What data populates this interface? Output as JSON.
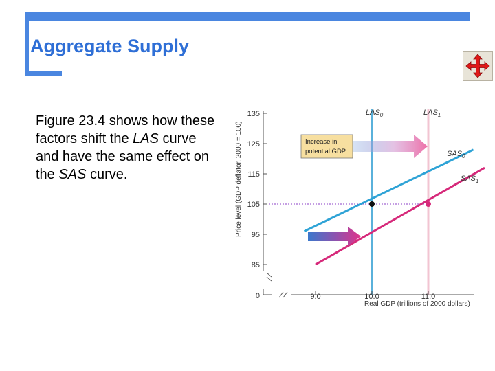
{
  "slide": {
    "title": "Aggregate Supply",
    "body": {
      "p1": "Figure 23.4 shows how these factors shift the ",
      "lasTerm": "LAS",
      "p2": " curve and have the same effect on the ",
      "sasTerm": "SAS",
      "p3": " curve."
    },
    "moveIcon": "move-arrows-icon"
  },
  "chart_data": {
    "type": "line",
    "xlabel": "Real GDP (trillions of 2000 dollars)",
    "ylabel": "Price level (GDP deflator, 2000 = 100)",
    "xlim": [
      8.0,
      12.0
    ],
    "ylim": [
      80,
      137
    ],
    "yticks": [
      85,
      95,
      105,
      115,
      125,
      135
    ],
    "ytickLabels": [
      "85",
      "95",
      "105",
      "115",
      "125",
      "135"
    ],
    "xticks": [
      9.0,
      10.0,
      11.0
    ],
    "xtickLabels": [
      "9.0",
      "10.0",
      "11.0"
    ],
    "originLabel": "0",
    "axisBreaks": true,
    "series": [
      {
        "name": "LAS",
        "sub": "0",
        "kind": "vertical",
        "x": 10.0,
        "color": "#5ab1db"
      },
      {
        "name": "LAS",
        "sub": "1",
        "kind": "vertical",
        "x": 11.0,
        "color": "#f2c4d2"
      },
      {
        "name": "SAS",
        "sub": "0",
        "kind": "line",
        "points": [
          [
            8.8,
            96
          ],
          [
            11.8,
            123
          ]
        ],
        "color": "#2ea3d6"
      },
      {
        "name": "SAS",
        "sub": "1",
        "kind": "line",
        "points": [
          [
            9.0,
            85
          ],
          [
            12.0,
            117
          ]
        ],
        "color": "#d6297a"
      }
    ],
    "equilibria": [
      {
        "x": 10.0,
        "y": 105,
        "color": "#111111"
      },
      {
        "x": 11.0,
        "y": 105,
        "color": "#d6297a"
      }
    ],
    "guideline": {
      "y": 105,
      "color": "#8b3fc7"
    },
    "annotations": [
      {
        "id": "box",
        "text": [
          "Increase in",
          "potential GDP"
        ]
      }
    ]
  }
}
